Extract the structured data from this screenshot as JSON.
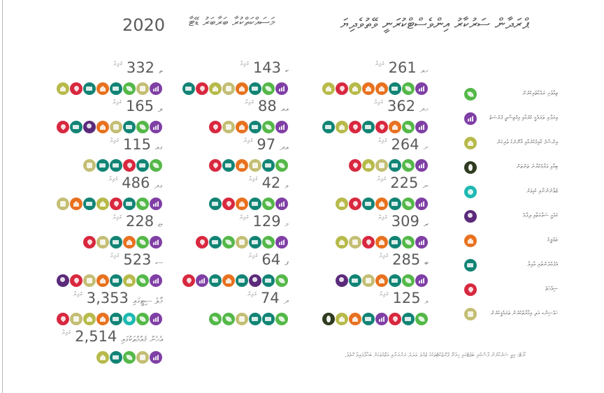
{
  "title": {
    "main": "ޕްރަދާން ސަރުކާރު އިންވެސްޓްކުރަނީ ވޭތުވެދިޔަ",
    "sub": "މަސައްކަތްކުރާ ބަރާބަރު ޑޭޓާ",
    "year": "2020"
  },
  "unit_label": "ރުފިޔާ",
  "colors": {
    "green": "#54b848",
    "purple": "#7f3fa5",
    "olive": "#b7ba4a",
    "dolive": "#2f3b1f",
    "cyan": "#1db9b1",
    "darkpurple": "#5b2a7a",
    "orange": "#e8711f",
    "teal": "#128475",
    "red": "#d8283f",
    "khaki": "#c4be74"
  },
  "entries": [
    {
      "value": "261",
      "code": "ހއ",
      "icons": [
        "olive",
        "red",
        "olive",
        "orange",
        "orange",
        "teal",
        "green",
        "purple"
      ]
    },
    {
      "value": "362",
      "code": "ހދ",
      "icons": [
        "teal",
        "olive",
        "red",
        "teal",
        "red",
        "orange",
        "green",
        "purple"
      ]
    },
    {
      "value": "264",
      "code": "ށ",
      "icons": [
        "red",
        "olive",
        "khaki",
        "teal",
        "green",
        "purple"
      ]
    },
    {
      "value": "225",
      "code": "ނ",
      "icons": [
        "olive",
        "red",
        "teal",
        "orange",
        "teal",
        "green",
        "purple"
      ]
    },
    {
      "value": "309",
      "code": "ރ",
      "icons": [
        "olive",
        "khaki",
        "red",
        "orange",
        "teal",
        "green",
        "purple"
      ]
    },
    {
      "value": "285",
      "code": "ބ",
      "icons": [
        "darkpurple",
        "teal",
        "khaki",
        "orange",
        "teal",
        "green",
        "purple"
      ]
    },
    {
      "value": "125",
      "code": "ޅ",
      "icons": [
        "dolive",
        "olive",
        "orange",
        "teal",
        "purple",
        "red",
        "teal",
        "green"
      ]
    },
    {
      "value": "143",
      "code": "ކ",
      "icons": [
        "teal",
        "red",
        "olive",
        "khaki",
        "orange",
        "teal",
        "green",
        "purple"
      ]
    },
    {
      "value": "88",
      "code": "އއ",
      "icons": [
        "red",
        "khaki",
        "orange",
        "teal",
        "green",
        "purple"
      ]
    },
    {
      "value": "97",
      "code": "އދ",
      "icons": [
        "red",
        "teal",
        "orange",
        "khaki",
        "teal",
        "green"
      ]
    },
    {
      "value": "42",
      "code": "ވ",
      "icons": [
        "teal",
        "red",
        "orange",
        "teal",
        "green",
        "purple"
      ]
    },
    {
      "value": "129",
      "code": "މ",
      "icons": [
        "red",
        "teal",
        "green",
        "khaki",
        "teal",
        "green",
        "purple"
      ]
    },
    {
      "value": "64",
      "code": "ފ",
      "icons": [
        "red",
        "purple",
        "teal",
        "orange",
        "teal",
        "darkpurple",
        "teal",
        "green"
      ]
    },
    {
      "value": "74",
      "code": "ދ",
      "icons": [
        "green",
        "green",
        "khaki",
        "teal",
        "teal",
        "green"
      ]
    },
    {
      "value": "332",
      "code": "ތ",
      "icons": [
        "olive",
        "red",
        "teal",
        "orange",
        "teal",
        "green",
        "khaki",
        "purple"
      ]
    },
    {
      "value": "165",
      "code": "ލ",
      "icons": [
        "red",
        "teal",
        "darkpurple",
        "orange",
        "khaki",
        "teal",
        "green",
        "purple"
      ]
    },
    {
      "value": "115",
      "code": "ގއ",
      "icons": [
        "khaki",
        "teal",
        "teal",
        "red",
        "teal",
        "green"
      ]
    },
    {
      "value": "486",
      "code": "ގދ",
      "icons": [
        "khaki",
        "orange",
        "teal",
        "olive",
        "red",
        "teal",
        "green",
        "purple"
      ]
    },
    {
      "value": "228",
      "code": "ޏ",
      "icons": [
        "red",
        "khaki",
        "teal",
        "orange",
        "green",
        "purple"
      ]
    },
    {
      "value": "523",
      "code": "ސ",
      "icons": [
        "darkpurple",
        "red",
        "khaki",
        "orange",
        "teal",
        "olive",
        "green",
        "purple"
      ]
    },
    {
      "value": "3,353",
      "code": "މާލެ ސިޓީގައި",
      "icons": [
        "red",
        "khaki",
        "olive",
        "orange",
        "teal",
        "cyan",
        "green",
        "purple"
      ]
    },
    {
      "value": "2,514",
      "code": "އެހެން ޤައުމުތަކުގައި",
      "icons": [
        "olive",
        "teal",
        "green",
        "khaki",
        "purple"
      ]
    }
  ],
  "legend": [
    {
      "icon": "green",
      "label": "ތިމާވެށި ރައްކާތެރިކުރުން"
    },
    {
      "icon": "purple",
      "label": "ވިޔަފާރި ތަރައްޤީ ކުރުމާއި އިޤްތިޞާދީ ފުރުޞަތު"
    },
    {
      "icon": "olive",
      "label": "އިންސާފު ޤާއިމުކުރުމާއި ޤާނޫނުގެ ވެރިކަން"
    },
    {
      "icon": "dolive",
      "label": "ބިމާއި އަރާމުކުރާނެ ތަންތަން"
    },
    {
      "icon": "cyan",
      "label": "ޒުވާނުންނާއި ކުޅިވަރު"
    },
    {
      "icon": "darkpurple",
      "label": "ޤައުމީ ސަލާމަތާއި ދިފާއު"
    },
    {
      "icon": "orange",
      "label": "ތަޢުލީމު"
    },
    {
      "icon": "teal",
      "label": "އުފެއްދުންތެރި ޢާއިލާ"
    },
    {
      "icon": "red",
      "label": "ޞިއްޙަތު"
    },
    {
      "icon": "khaki",
      "label": "ހައުސިންގ އަދި އިމާރާތްކުރުން ތަރައްޤީކުރުން"
    }
  ],
  "source": "ނޯޓް: މިއީ ސަރުކާރުން ފާސްކުރި ބަޖެޓުގައި ހިމެނޭ ޕްރޮޖެކްޓުތަކުގެ ޖުމްލަ ޢަދަދު ރަށްރަށާއި އަތޮޅުތަކަށް ބަހާލާފައިވާ ގޮތެވެ."
}
